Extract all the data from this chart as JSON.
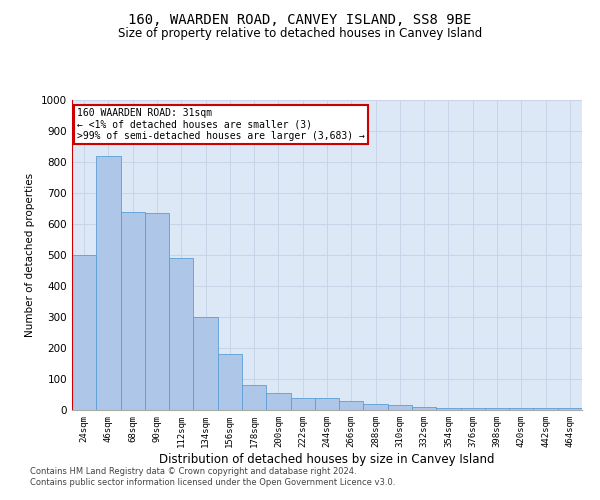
{
  "title": "160, WAARDEN ROAD, CANVEY ISLAND, SS8 9BE",
  "subtitle": "Size of property relative to detached houses in Canvey Island",
  "xlabel": "Distribution of detached houses by size in Canvey Island",
  "ylabel": "Number of detached properties",
  "footer_line1": "Contains HM Land Registry data © Crown copyright and database right 2024.",
  "footer_line2": "Contains public sector information licensed under the Open Government Licence v3.0.",
  "bin_labels": [
    "24sqm",
    "46sqm",
    "68sqm",
    "90sqm",
    "112sqm",
    "134sqm",
    "156sqm",
    "178sqm",
    "200sqm",
    "222sqm",
    "244sqm",
    "266sqm",
    "288sqm",
    "310sqm",
    "332sqm",
    "354sqm",
    "376sqm",
    "398sqm",
    "420sqm",
    "442sqm",
    "464sqm"
  ],
  "bar_values": [
    500,
    820,
    640,
    635,
    490,
    300,
    180,
    80,
    55,
    40,
    38,
    30,
    18,
    15,
    10,
    8,
    5,
    5,
    5,
    5,
    5
  ],
  "bar_color": "#aec6e8",
  "bar_edge_color": "#5a9fd4",
  "grid_color": "#c8d4e8",
  "background_color": "#dce8f5",
  "annotation_text": "160 WAARDEN ROAD: 31sqm\n← <1% of detached houses are smaller (3)\n>99% of semi-detached houses are larger (3,683) →",
  "annotation_color": "#cc0000",
  "ylim": [
    0,
    1000
  ],
  "yticks": [
    0,
    100,
    200,
    300,
    400,
    500,
    600,
    700,
    800,
    900,
    1000
  ]
}
